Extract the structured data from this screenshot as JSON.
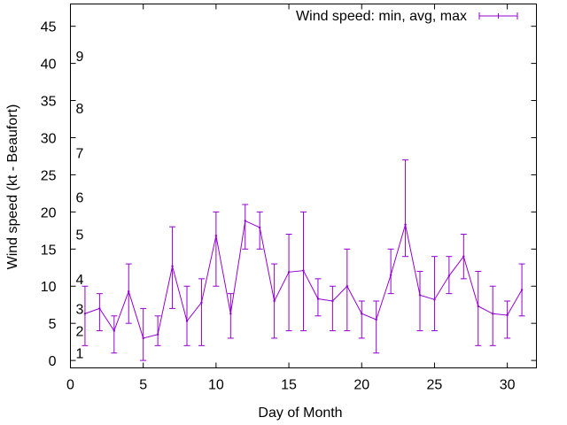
{
  "chart_data": {
    "type": "line",
    "xlabel": "Day of Month",
    "ylabel": "Wind speed (kt - Beaufort)",
    "xlim": [
      0,
      32
    ],
    "ylim": [
      -1,
      48
    ],
    "x_ticks": [
      0,
      5,
      10,
      15,
      20,
      25,
      30
    ],
    "y_ticks": [
      0,
      5,
      10,
      15,
      20,
      25,
      30,
      35,
      40,
      45
    ],
    "grid": false,
    "legend_position": "top-right",
    "series": [
      {
        "name": "Wind speed: min, avg, max",
        "color": "#9400d3",
        "x": [
          1,
          2,
          3,
          4,
          5,
          6,
          7,
          8,
          9,
          10,
          11,
          12,
          13,
          14,
          15,
          16,
          17,
          18,
          19,
          20,
          21,
          22,
          23,
          24,
          25,
          26,
          27,
          28,
          29,
          30,
          31
        ],
        "avg": [
          6.3,
          7,
          4,
          9.3,
          3,
          3.5,
          12.7,
          5.3,
          7.8,
          16.8,
          6.3,
          18.8,
          17.9,
          8,
          11.9,
          12.1,
          8.3,
          8,
          10,
          6.3,
          5.5,
          11.5,
          18.3,
          8.8,
          8.2,
          11.4,
          14,
          7.3,
          6.3,
          6.1,
          9.5
        ],
        "min": [
          2,
          4,
          1,
          5,
          0,
          2,
          7,
          2,
          2,
          10,
          3,
          15,
          15,
          3,
          4,
          4,
          6,
          4,
          4,
          3,
          1,
          9,
          14,
          4,
          4,
          9,
          11,
          2,
          2,
          3,
          6
        ],
        "max": [
          10,
          9,
          6,
          13,
          7,
          6,
          18,
          10,
          11,
          20,
          9,
          21,
          20,
          13,
          17,
          20,
          11,
          10,
          15,
          8,
          8,
          15,
          27,
          12,
          14,
          14,
          17,
          12,
          10,
          8,
          13
        ]
      }
    ],
    "annotations": [
      {
        "text": "1",
        "y": 1
      },
      {
        "text": "2",
        "y": 4
      },
      {
        "text": "3",
        "y": 7
      },
      {
        "text": "4",
        "y": 11
      },
      {
        "text": "5",
        "y": 17
      },
      {
        "text": "6",
        "y": 22
      },
      {
        "text": "7",
        "y": 28
      },
      {
        "text": "8",
        "y": 34
      },
      {
        "text": "9",
        "y": 41
      }
    ]
  }
}
